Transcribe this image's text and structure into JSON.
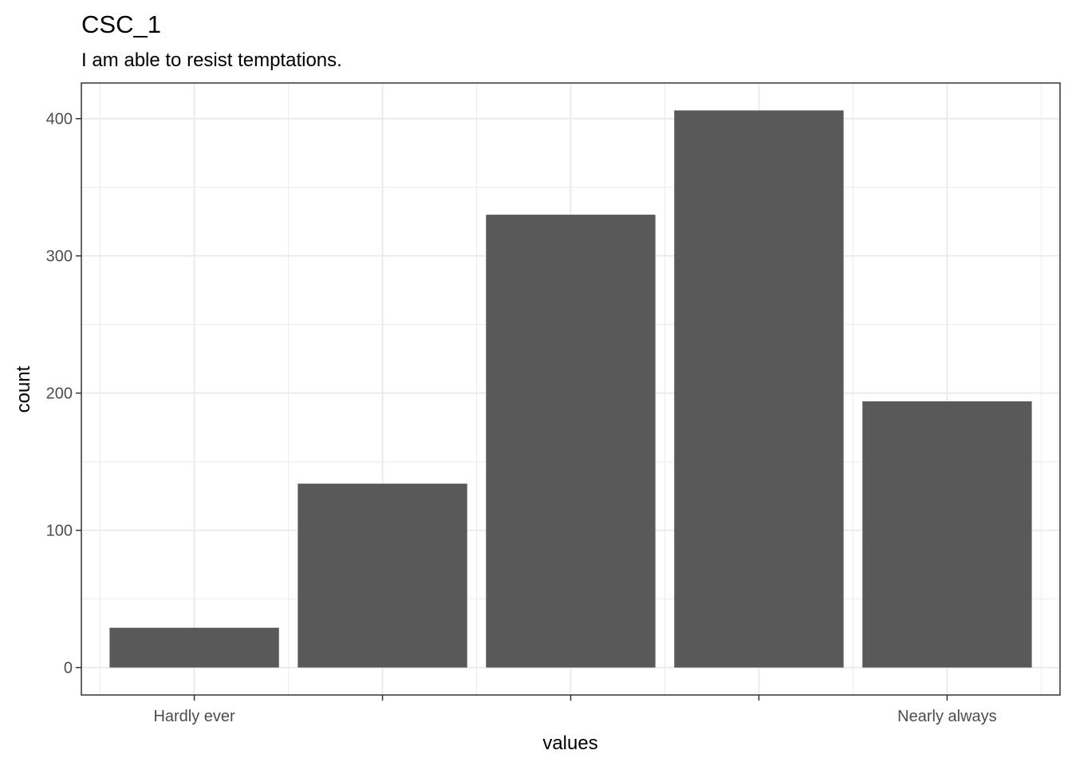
{
  "chart_data": {
    "type": "bar",
    "title": "CSC_1",
    "subtitle": "I am able to resist temptations.",
    "xlabel": "values",
    "ylabel": "count",
    "categories": [
      "Hardly ever",
      "",
      "",
      "",
      "Nearly always"
    ],
    "values": [
      29,
      134,
      330,
      406,
      194
    ],
    "ylim": [
      -20,
      426
    ],
    "yticks": [
      0,
      100,
      200,
      300,
      400
    ],
    "grid": true,
    "bar_color": "#595959",
    "panel_border_color": "#333333",
    "grid_color": "#ebebeb"
  }
}
